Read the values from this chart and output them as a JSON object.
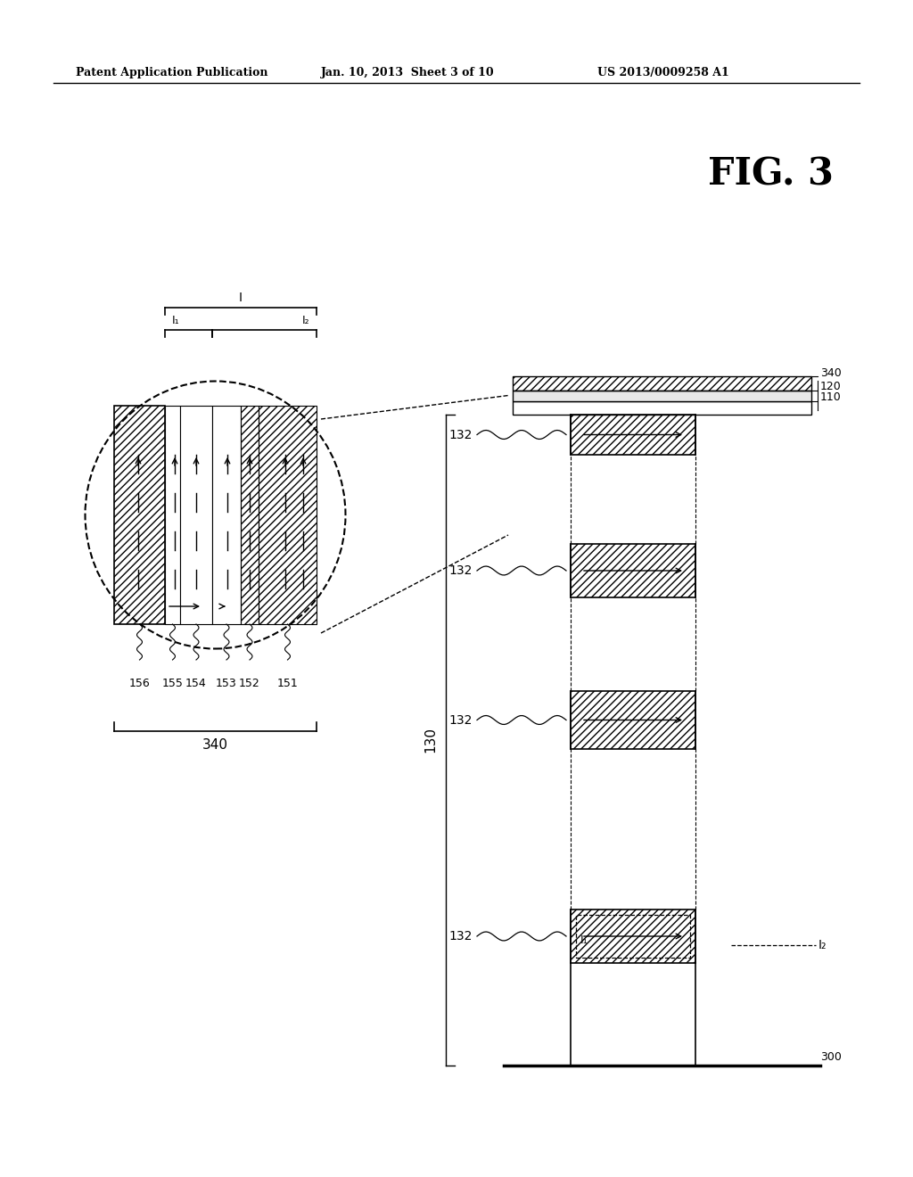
{
  "bg_color": "#ffffff",
  "line_color": "#000000",
  "header_left": "Patent Application Publication",
  "header_mid": "Jan. 10, 2013  Sheet 3 of 10",
  "header_right": "US 2013/0009258 A1",
  "fig_label": "FIG. 3",
  "layer_labels": [
    "156",
    "155",
    "154",
    "153",
    "152",
    "151"
  ],
  "bottom_label": "340",
  "right_labels_top": [
    "340",
    "120",
    "110"
  ],
  "right_label_bot": "300",
  "mid_label": "130",
  "sub_labels": [
    "132",
    "132",
    "132",
    "132"
  ]
}
